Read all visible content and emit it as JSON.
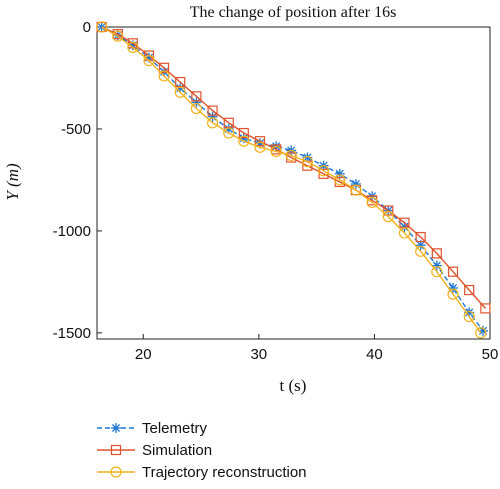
{
  "chart_data": {
    "type": "line",
    "title": "The change of position after 16s",
    "xlabel": "t (s)",
    "ylabel": "Y (m)",
    "xlim": [
      16,
      50
    ],
    "ylim": [
      -1530,
      0
    ],
    "x_ticks": [
      20,
      30,
      40,
      50
    ],
    "y_ticks": [
      0,
      -500,
      -1000,
      -1500
    ],
    "grid": false,
    "legend_position": "below",
    "series": [
      {
        "name": "Telemetry",
        "color": "#1f77d4",
        "marker": "asterisk",
        "line_style": "dashed",
        "x": [
          16.4,
          17.8,
          19.1,
          20.5,
          21.8,
          23.2,
          24.6,
          26.0,
          27.4,
          28.7,
          30.1,
          31.5,
          32.8,
          34.2,
          35.6,
          37.0,
          38.4,
          39.8,
          41.2,
          42.6,
          44.0,
          45.4,
          46.8,
          48.2,
          49.4
        ],
        "y": [
          0,
          -40,
          -90,
          -150,
          -220,
          -300,
          -370,
          -440,
          -500,
          -545,
          -570,
          -585,
          -605,
          -640,
          -680,
          -720,
          -770,
          -830,
          -900,
          -980,
          -1070,
          -1170,
          -1280,
          -1400,
          -1490
        ]
      },
      {
        "name": "Simulation",
        "color": "#e0522b",
        "marker": "square",
        "line_style": "solid",
        "x": [
          16.4,
          17.8,
          19.1,
          20.5,
          21.8,
          23.2,
          24.6,
          26.0,
          27.4,
          28.7,
          30.1,
          31.5,
          32.8,
          34.2,
          35.6,
          37.0,
          38.4,
          39.8,
          41.2,
          42.6,
          44.0,
          45.4,
          46.8,
          48.2,
          49.6
        ],
        "y": [
          0,
          -35,
          -80,
          -140,
          -200,
          -270,
          -340,
          -410,
          -470,
          -520,
          -560,
          -600,
          -640,
          -680,
          -720,
          -760,
          -800,
          -850,
          -900,
          -960,
          -1030,
          -1110,
          -1200,
          -1290,
          -1380
        ]
      },
      {
        "name": "Trajectory reconstruction",
        "color": "#f2b21b",
        "marker": "circle",
        "line_style": "solid",
        "x": [
          16.4,
          17.8,
          19.1,
          20.5,
          21.8,
          23.2,
          24.6,
          26.0,
          27.4,
          28.7,
          30.1,
          31.5,
          32.8,
          34.2,
          35.6,
          37.0,
          38.4,
          39.8,
          41.2,
          42.6,
          44.0,
          45.4,
          46.8,
          48.2,
          49.2
        ],
        "y": [
          0,
          -45,
          -100,
          -165,
          -240,
          -320,
          -400,
          -470,
          -520,
          -560,
          -590,
          -610,
          -630,
          -660,
          -705,
          -750,
          -800,
          -860,
          -930,
          -1010,
          -1100,
          -1200,
          -1310,
          -1420,
          -1500
        ]
      }
    ]
  }
}
